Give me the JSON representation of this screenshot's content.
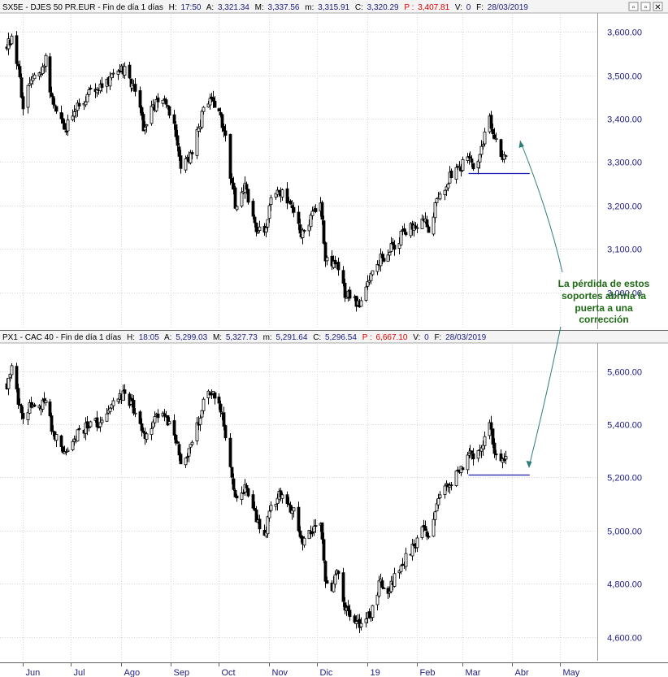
{
  "window_buttons": [
    "▫",
    "▫",
    "✕"
  ],
  "chart_data": [
    {
      "type": "candlestick",
      "header": {
        "symbol": "SX5E - DJES 50 PR.EUR - Fin de día 1 días",
        "fields": [
          {
            "label": "H:",
            "value": "17:50"
          },
          {
            "label": "A:",
            "value": "3,321.34"
          },
          {
            "label": "M:",
            "value": "3,337.56"
          },
          {
            "label": "m:",
            "value": "3,315.91"
          },
          {
            "label": "C:",
            "value": "3,320.29"
          },
          {
            "label": "P :",
            "value": "3,407.81",
            "color": "#e00000"
          },
          {
            "label": "V:",
            "value": "0"
          },
          {
            "label": "F:",
            "value": "28/03/2019"
          }
        ]
      },
      "yticks": [
        3000,
        3100,
        3200,
        3300,
        3400,
        3500,
        3600
      ],
      "ytick_labels": [
        "3,000.00",
        "3,100.00",
        "3,200.00",
        "3,300.00",
        "3,400.00",
        "3,500.00",
        "3,600.00"
      ],
      "ylim": [
        2915,
        3640
      ],
      "support_level": 3275,
      "anchors": [
        [
          "2018-05-22",
          3565
        ],
        [
          "2018-05-25",
          3590
        ],
        [
          "2018-05-30",
          3490
        ],
        [
          "2018-06-01",
          3430
        ],
        [
          "2018-06-06",
          3500
        ],
        [
          "2018-06-11",
          3500
        ],
        [
          "2018-06-15",
          3540
        ],
        [
          "2018-06-20",
          3430
        ],
        [
          "2018-06-28",
          3380
        ],
        [
          "2018-07-05",
          3430
        ],
        [
          "2018-07-13",
          3460
        ],
        [
          "2018-07-20",
          3470
        ],
        [
          "2018-07-27",
          3500
        ],
        [
          "2018-08-01",
          3520
        ],
        [
          "2018-08-06",
          3490
        ],
        [
          "2018-08-10",
          3470
        ],
        [
          "2018-08-15",
          3380
        ],
        [
          "2018-08-20",
          3420
        ],
        [
          "2018-08-27",
          3450
        ],
        [
          "2018-09-03",
          3390
        ],
        [
          "2018-09-07",
          3290
        ],
        [
          "2018-09-14",
          3320
        ],
        [
          "2018-09-21",
          3420
        ],
        [
          "2018-09-26",
          3440
        ],
        [
          "2018-10-01",
          3430
        ],
        [
          "2018-10-05",
          3350
        ],
        [
          "2018-10-11",
          3200
        ],
        [
          "2018-10-17",
          3240
        ],
        [
          "2018-10-24",
          3150
        ],
        [
          "2018-10-29",
          3140
        ],
        [
          "2018-11-02",
          3210
        ],
        [
          "2018-11-07",
          3240
        ],
        [
          "2018-11-12",
          3210
        ],
        [
          "2018-11-16",
          3180
        ],
        [
          "2018-11-21",
          3140
        ],
        [
          "2018-11-26",
          3160
        ],
        [
          "2018-11-30",
          3190
        ],
        [
          "2018-12-03",
          3210
        ],
        [
          "2018-12-06",
          3070
        ],
        [
          "2018-12-10",
          3060
        ],
        [
          "2018-12-13",
          3070
        ],
        [
          "2018-12-18",
          3000
        ],
        [
          "2018-12-21",
          2995
        ],
        [
          "2018-12-27",
          2970
        ],
        [
          "2019-01-03",
          3040
        ],
        [
          "2019-01-09",
          3080
        ],
        [
          "2019-01-14",
          3090
        ],
        [
          "2019-01-22",
          3130
        ],
        [
          "2019-01-29",
          3150
        ],
        [
          "2019-02-04",
          3170
        ],
        [
          "2019-02-08",
          3150
        ],
        [
          "2019-02-15",
          3230
        ],
        [
          "2019-02-22",
          3270
        ],
        [
          "2019-02-28",
          3290
        ],
        [
          "2019-03-05",
          3320
        ],
        [
          "2019-03-08",
          3290
        ],
        [
          "2019-03-13",
          3330
        ],
        [
          "2019-03-18",
          3400
        ],
        [
          "2019-03-22",
          3350
        ],
        [
          "2019-03-25",
          3310
        ],
        [
          "2019-03-28",
          3320
        ]
      ]
    },
    {
      "type": "candlestick",
      "header": {
        "symbol": "PX1 - CAC 40 - Fin de día 1 días",
        "fields": [
          {
            "label": "H:",
            "value": "18:05"
          },
          {
            "label": "A:",
            "value": "5,299.03"
          },
          {
            "label": "M:",
            "value": "5,327.73"
          },
          {
            "label": "m:",
            "value": "5,291.64"
          },
          {
            "label": "C:",
            "value": "5,296.54"
          },
          {
            "label": "P :",
            "value": "6,667.10",
            "color": "#e00000"
          },
          {
            "label": "V:",
            "value": "0"
          },
          {
            "label": "F:",
            "value": "28/03/2019"
          }
        ]
      },
      "yticks": [
        4600,
        4800,
        5000,
        5200,
        5400,
        5600
      ],
      "ytick_labels": [
        "4,600.00",
        "4,800.00",
        "5,000.00",
        "5,200.00",
        "5,400.00",
        "5,600.00"
      ],
      "ylim": [
        4510,
        5700
      ],
      "support_level": 5210,
      "anchors": [
        [
          "2018-05-22",
          5550
        ],
        [
          "2018-05-25",
          5620
        ],
        [
          "2018-05-30",
          5450
        ],
        [
          "2018-06-01",
          5430
        ],
        [
          "2018-06-06",
          5480
        ],
        [
          "2018-06-11",
          5470
        ],
        [
          "2018-06-15",
          5500
        ],
        [
          "2018-06-20",
          5360
        ],
        [
          "2018-06-28",
          5290
        ],
        [
          "2018-07-05",
          5360
        ],
        [
          "2018-07-13",
          5400
        ],
        [
          "2018-07-20",
          5410
        ],
        [
          "2018-07-27",
          5480
        ],
        [
          "2018-08-01",
          5510
        ],
        [
          "2018-08-06",
          5490
        ],
        [
          "2018-08-10",
          5450
        ],
        [
          "2018-08-15",
          5350
        ],
        [
          "2018-08-20",
          5400
        ],
        [
          "2018-08-27",
          5460
        ],
        [
          "2018-09-03",
          5360
        ],
        [
          "2018-09-07",
          5260
        ],
        [
          "2018-09-14",
          5320
        ],
        [
          "2018-09-21",
          5490
        ],
        [
          "2018-09-26",
          5530
        ],
        [
          "2018-10-01",
          5500
        ],
        [
          "2018-10-05",
          5360
        ],
        [
          "2018-10-11",
          5120
        ],
        [
          "2018-10-17",
          5170
        ],
        [
          "2018-10-24",
          5050
        ],
        [
          "2018-10-29",
          4970
        ],
        [
          "2018-11-02",
          5100
        ],
        [
          "2018-11-07",
          5130
        ],
        [
          "2018-11-12",
          5100
        ],
        [
          "2018-11-16",
          5070
        ],
        [
          "2018-11-21",
          4960
        ],
        [
          "2018-11-26",
          4990
        ],
        [
          "2018-11-30",
          5010
        ],
        [
          "2018-12-03",
          5030
        ],
        [
          "2018-12-06",
          4800
        ],
        [
          "2018-12-10",
          4760
        ],
        [
          "2018-12-13",
          4850
        ],
        [
          "2018-12-18",
          4720
        ],
        [
          "2018-12-21",
          4660
        ],
        [
          "2018-12-27",
          4640
        ],
        [
          "2019-01-03",
          4690
        ],
        [
          "2019-01-09",
          4810
        ],
        [
          "2019-01-14",
          4780
        ],
        [
          "2019-01-22",
          4870
        ],
        [
          "2019-01-29",
          4930
        ],
        [
          "2019-02-04",
          5000
        ],
        [
          "2019-02-08",
          4990
        ],
        [
          "2019-02-15",
          5120
        ],
        [
          "2019-02-22",
          5190
        ],
        [
          "2019-02-28",
          5240
        ],
        [
          "2019-03-05",
          5290
        ],
        [
          "2019-03-08",
          5270
        ],
        [
          "2019-03-13",
          5310
        ],
        [
          "2019-03-18",
          5410
        ],
        [
          "2019-03-22",
          5270
        ],
        [
          "2019-03-25",
          5260
        ],
        [
          "2019-03-28",
          5296
        ]
      ]
    }
  ],
  "x_axis": {
    "ticks": [
      {
        "date": "2018-06-01",
        "label": "Jun"
      },
      {
        "date": "2018-07-01",
        "label": "Jul"
      },
      {
        "date": "2018-08-01",
        "label": "Ago"
      },
      {
        "date": "2018-09-01",
        "label": "Sep"
      },
      {
        "date": "2018-10-01",
        "label": "Oct"
      },
      {
        "date": "2018-11-01",
        "label": "Nov"
      },
      {
        "date": "2018-12-01",
        "label": "Dic"
      },
      {
        "date": "2019-01-01",
        "label": "19"
      },
      {
        "date": "2019-02-01",
        "label": "Feb"
      },
      {
        "date": "2019-03-01",
        "label": "Mar"
      },
      {
        "date": "2019-04-01",
        "label": "Abr"
      },
      {
        "date": "2019-05-01",
        "label": "May"
      }
    ],
    "xlim": [
      "2018-05-20",
      "2019-05-24"
    ]
  },
  "annotation": {
    "lines": [
      "La pérdida de estos",
      "soportes abriría la",
      "puerta a una",
      "corrección"
    ],
    "color": "#1e6b14"
  },
  "colors": {
    "axis_text": "#1c1c80",
    "support_line": "#1c1cb0",
    "arrow": "#2e7d7a",
    "candles": "#000000",
    "grid": "#d6d6d6"
  }
}
